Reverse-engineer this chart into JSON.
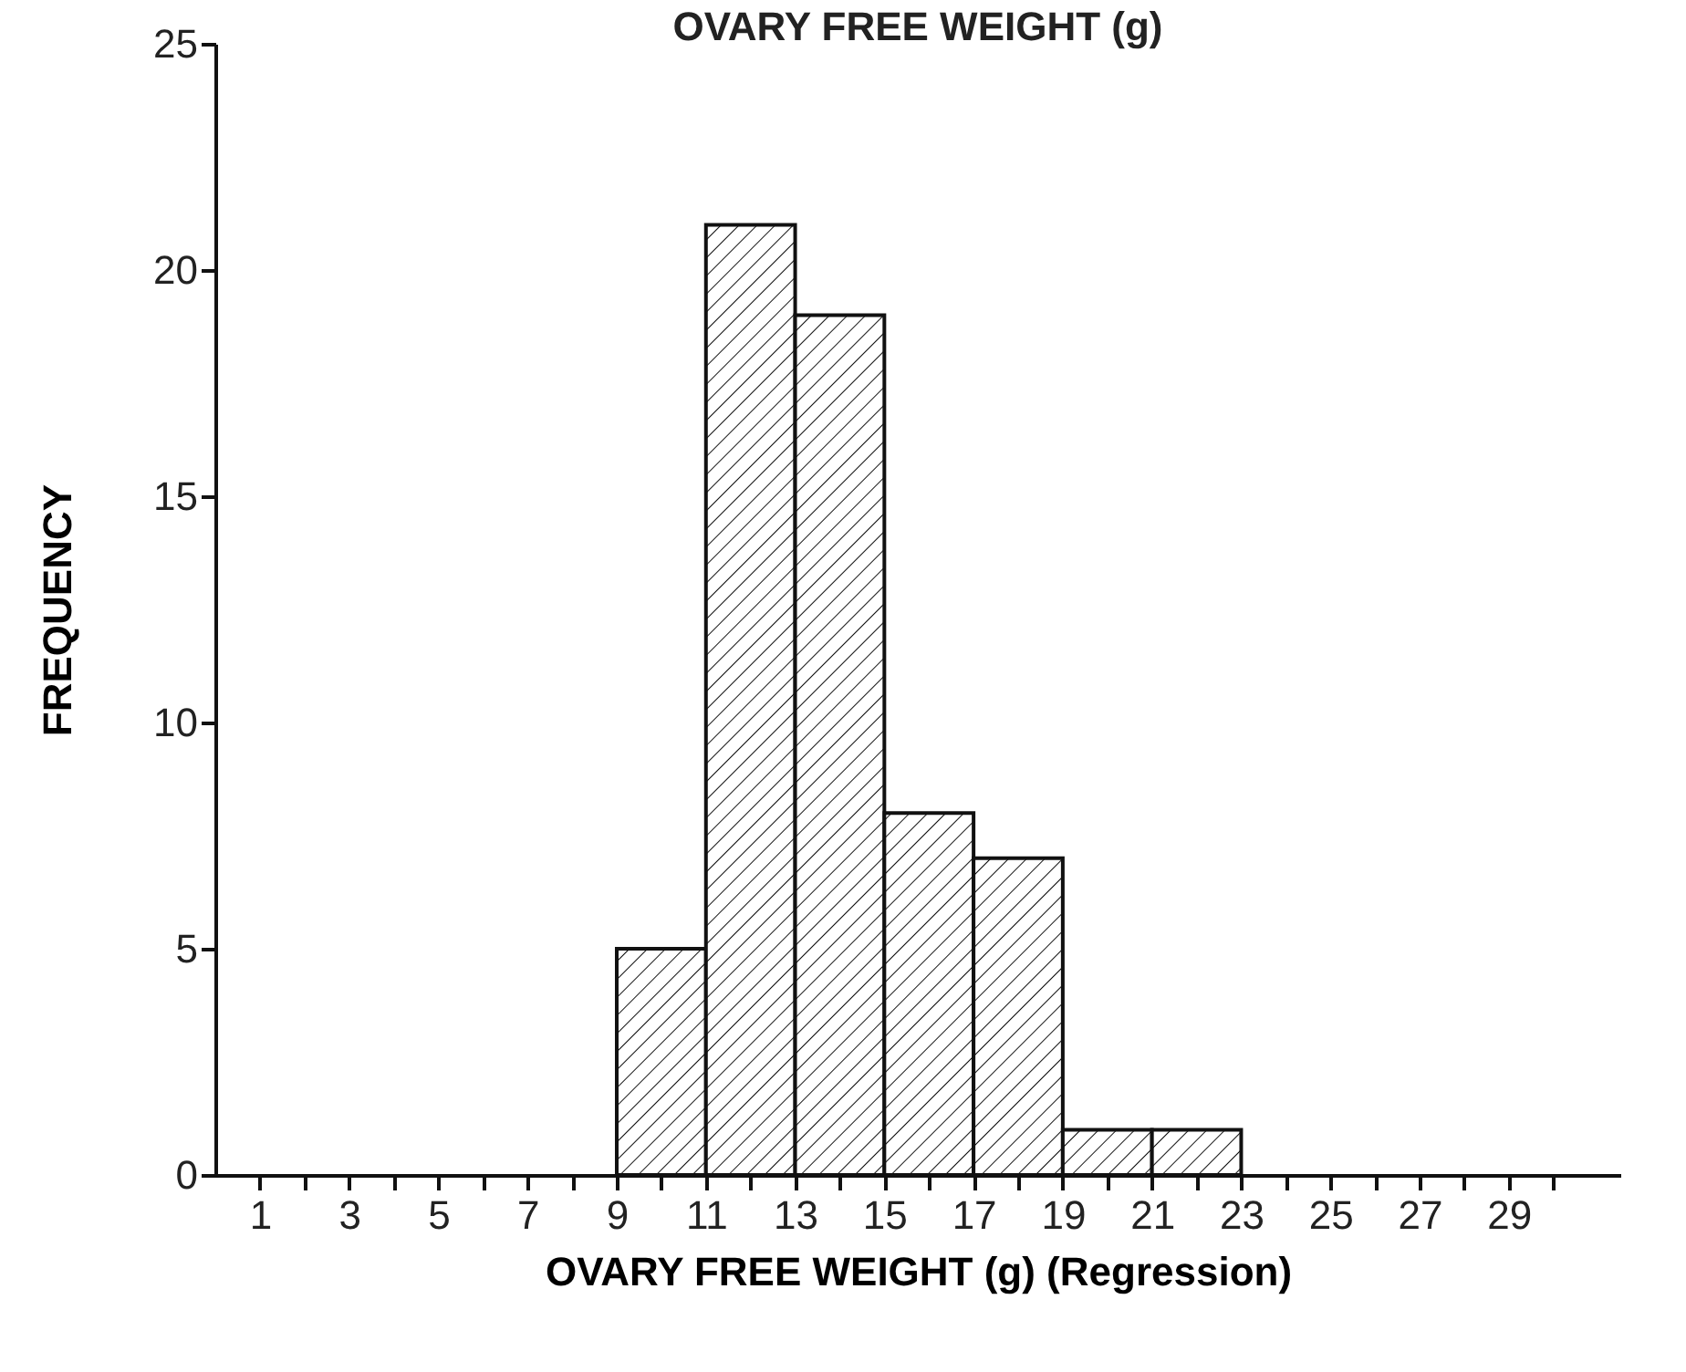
{
  "chart_data": {
    "type": "histogram",
    "title": "OVARY FREE WEIGHT (g)",
    "xlabel": "OVARY FREE WEIGHT (g) (Regression)",
    "ylabel": "FREQUENCY",
    "bins": [
      9,
      11,
      13,
      15,
      17,
      19,
      21,
      23
    ],
    "values": [
      5,
      21,
      19,
      8,
      7,
      1,
      1
    ],
    "color": "#111111",
    "xlim": [
      0,
      31.5
    ],
    "xticks": [
      1,
      {
        "value": 2,
        "label": null
      },
      3,
      {
        "value": 4,
        "label": null
      },
      5,
      {
        "value": 6,
        "label": null
      },
      7,
      {
        "value": 8,
        "label": null
      },
      9,
      {
        "value": 10,
        "label": null
      },
      11,
      {
        "value": 12,
        "label": null
      },
      13,
      {
        "value": 14,
        "label": null
      },
      15,
      {
        "value": 16,
        "label": null
      },
      17,
      {
        "value": 18,
        "label": null
      },
      19,
      {
        "value": 20,
        "label": null
      },
      21,
      {
        "value": 22,
        "label": null
      },
      23,
      {
        "value": 24,
        "label": null
      },
      25,
      {
        "value": 26,
        "label": null
      },
      27,
      {
        "value": 28,
        "label": null
      },
      29,
      {
        "value": 30,
        "label": null
      }
    ],
    "ylim": [
      0,
      25
    ],
    "yticks": [
      0,
      5,
      10,
      15,
      20,
      25
    ],
    "grid": false
  }
}
